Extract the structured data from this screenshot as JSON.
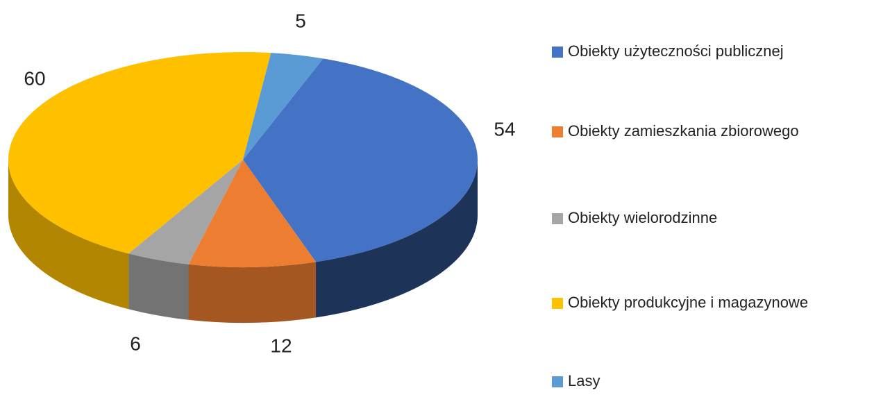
{
  "chart_data": {
    "type": "pie",
    "categories": [
      "Obiekty użyteczności publicznej",
      "Obiekty zamieszkania zbiorowego",
      "Obiekty wielorodzinne",
      "Obiekty produkcyjne i magazynowe",
      "Lasy"
    ],
    "values": [
      54,
      12,
      6,
      60,
      5
    ],
    "colors": [
      "#4472c4",
      "#ed7d31",
      "#a5a5a5",
      "#ffc000",
      "#5b9bd5"
    ],
    "legend": "right"
  }
}
